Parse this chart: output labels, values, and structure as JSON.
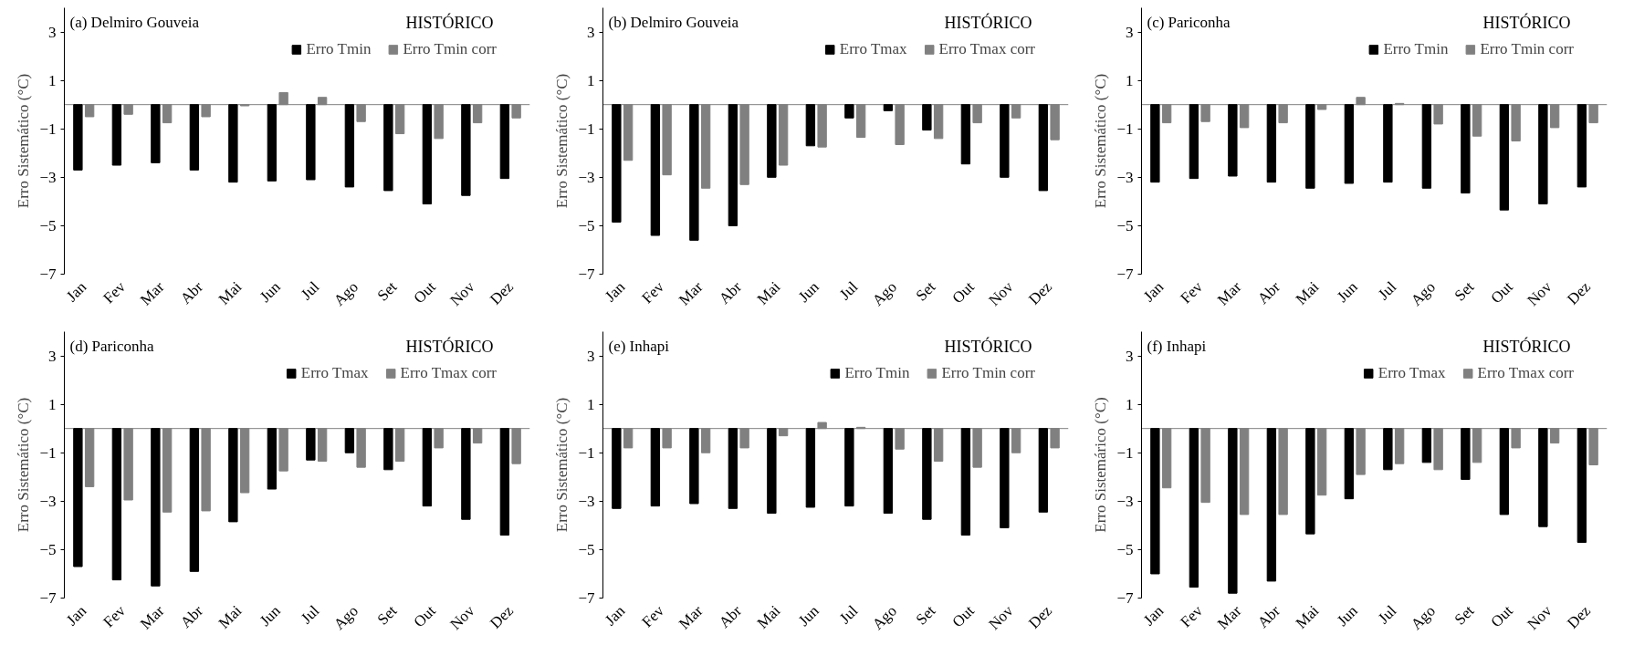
{
  "chart_data": [
    {
      "type": "bar",
      "title": "(a) Delmiro  Gouveia",
      "subtitle": "HISTÓRICO",
      "ylabel": "Erro Sistemático (°C)",
      "categories": [
        "Jan",
        "Fev",
        "Mar",
        "Abr",
        "Mai",
        "Jun",
        "Jul",
        "Ago",
        "Set",
        "Out",
        "Nov",
        "Dez"
      ],
      "ylim": [
        -7,
        4
      ],
      "yticks": [
        -7,
        -5,
        -3,
        -1,
        1,
        3
      ],
      "grid": false,
      "legend": "top right",
      "ref_lines": [
        {
          "axis": "y",
          "value": 0,
          "color": "#808080"
        }
      ],
      "series": [
        {
          "name": "Erro Tmin",
          "color": "#000000",
          "values": [
            -2.7,
            -2.5,
            -2.4,
            -2.7,
            -3.2,
            -3.15,
            -3.1,
            -3.4,
            -3.55,
            -4.1,
            -3.75,
            -3.05
          ]
        },
        {
          "name": "Erro Tmin corr",
          "color": "#808080",
          "values": [
            -0.5,
            -0.4,
            -0.75,
            -0.5,
            -0.05,
            0.5,
            0.3,
            -0.7,
            -1.2,
            -1.4,
            -0.75,
            -0.55
          ]
        }
      ]
    },
    {
      "type": "bar",
      "title": "(b) Delmiro  Gouveia",
      "subtitle": "HISTÓRICO",
      "ylabel": "Erro Sistemático (°C)",
      "categories": [
        "Jan",
        "Fev",
        "Mar",
        "Abr",
        "Mai",
        "Jun",
        "Jul",
        "Ago",
        "Set",
        "Out",
        "Nov",
        "Dez"
      ],
      "ylim": [
        -7,
        4
      ],
      "yticks": [
        -7,
        -5,
        -3,
        -1,
        1,
        3
      ],
      "grid": false,
      "legend": "top right",
      "ref_lines": [
        {
          "axis": "y",
          "value": 0,
          "color": "#808080"
        }
      ],
      "series": [
        {
          "name": "Erro Tmax",
          "color": "#000000",
          "values": [
            -4.85,
            -5.4,
            -5.6,
            -5.0,
            -3.0,
            -1.7,
            -0.55,
            -0.25,
            -1.05,
            -2.45,
            -3.0,
            -3.55
          ]
        },
        {
          "name": "Erro Tmax corr",
          "color": "#808080",
          "values": [
            -2.3,
            -2.9,
            -3.45,
            -3.3,
            -2.5,
            -1.75,
            -1.35,
            -1.65,
            -1.4,
            -0.75,
            -0.55,
            -1.45
          ]
        }
      ]
    },
    {
      "type": "bar",
      "title": "(c) Pariconha",
      "subtitle": "HISTÓRICO",
      "ylabel": "Erro Sistemático (°C)",
      "categories": [
        "Jan",
        "Fev",
        "Mar",
        "Abr",
        "Mai",
        "Jun",
        "Jul",
        "Ago",
        "Set",
        "Out",
        "Nov",
        "Dez"
      ],
      "ylim": [
        -7,
        4
      ],
      "yticks": [
        -7,
        -5,
        -3,
        -1,
        1,
        3
      ],
      "grid": false,
      "legend": "top right",
      "ref_lines": [
        {
          "axis": "y",
          "value": 0,
          "color": "#808080"
        }
      ],
      "series": [
        {
          "name": "Erro Tmin",
          "color": "#000000",
          "values": [
            -3.2,
            -3.05,
            -2.95,
            -3.2,
            -3.45,
            -3.25,
            -3.2,
            -3.45,
            -3.65,
            -4.35,
            -4.1,
            -3.4
          ]
        },
        {
          "name": "Erro Tmin corr",
          "color": "#808080",
          "values": [
            -0.75,
            -0.7,
            -0.95,
            -0.75,
            -0.2,
            0.3,
            0.05,
            -0.8,
            -1.3,
            -1.5,
            -0.95,
            -0.75
          ]
        }
      ]
    },
    {
      "type": "bar",
      "title": "(d) Pariconha",
      "subtitle": "HISTÓRICO",
      "ylabel": "Erro Sistemático (°C)",
      "categories": [
        "Jan",
        "Fev",
        "Mar",
        "Abr",
        "Mai",
        "Jun",
        "Jul",
        "Ago",
        "Set",
        "Out",
        "Nov",
        "Dez"
      ],
      "ylim": [
        -7,
        4
      ],
      "yticks": [
        -7,
        -5,
        -3,
        -1,
        1,
        3
      ],
      "grid": false,
      "legend": "top right",
      "ref_lines": [
        {
          "axis": "y",
          "value": 0,
          "color": "#808080"
        }
      ],
      "series": [
        {
          "name": "Erro Tmax",
          "color": "#000000",
          "values": [
            -5.7,
            -6.25,
            -6.5,
            -5.9,
            -3.85,
            -2.5,
            -1.3,
            -1.0,
            -1.7,
            -3.2,
            -3.75,
            -4.4
          ]
        },
        {
          "name": "Erro Tmax corr",
          "color": "#808080",
          "values": [
            -2.4,
            -2.95,
            -3.45,
            -3.4,
            -2.65,
            -1.75,
            -1.35,
            -1.6,
            -1.35,
            -0.8,
            -0.6,
            -1.45
          ]
        }
      ]
    },
    {
      "type": "bar",
      "title": "(e) Inhapi",
      "subtitle": "HISTÓRICO",
      "ylabel": "Erro Sistemático (°C)",
      "categories": [
        "Jan",
        "Fev",
        "Mar",
        "Abr",
        "Mai",
        "Jun",
        "Jul",
        "Ago",
        "Set",
        "Out",
        "Nov",
        "Dez"
      ],
      "ylim": [
        -7,
        4
      ],
      "yticks": [
        -7,
        -5,
        -3,
        -1,
        1,
        3
      ],
      "grid": false,
      "legend": "top right",
      "ref_lines": [
        {
          "axis": "y",
          "value": 0,
          "color": "#808080"
        }
      ],
      "series": [
        {
          "name": "Erro Tmin",
          "color": "#000000",
          "values": [
            -3.3,
            -3.2,
            -3.1,
            -3.3,
            -3.5,
            -3.25,
            -3.2,
            -3.5,
            -3.75,
            -4.4,
            -4.1,
            -3.45
          ]
        },
        {
          "name": "Erro Tmin corr",
          "color": "#808080",
          "values": [
            -0.8,
            -0.8,
            -1.0,
            -0.8,
            -0.3,
            0.25,
            0.05,
            -0.85,
            -1.35,
            -1.6,
            -1.0,
            -0.8
          ]
        }
      ]
    },
    {
      "type": "bar",
      "title": "(f) Inhapi",
      "subtitle": "HISTÓRICO",
      "ylabel": "Erro Sistemárico (°C)",
      "categories": [
        "Jan",
        "Fev",
        "Mar",
        "Abr",
        "Mai",
        "Jun",
        "Jul",
        "Ago",
        "Set",
        "Out",
        "Nov",
        "Dez"
      ],
      "ylim": [
        -7,
        4
      ],
      "yticks": [
        -7,
        -5,
        -3,
        -1,
        1,
        3
      ],
      "grid": false,
      "legend": "top right",
      "ref_lines": [
        {
          "axis": "y",
          "value": 0,
          "color": "#808080"
        }
      ],
      "series": [
        {
          "name": "Erro Tmax",
          "color": "#000000",
          "values": [
            -6.0,
            -6.55,
            -6.8,
            -6.3,
            -4.35,
            -2.9,
            -1.7,
            -1.4,
            -2.1,
            -3.55,
            -4.05,
            -4.7
          ]
        },
        {
          "name": "Erro Tmax corr",
          "color": "#808080",
          "values": [
            -2.45,
            -3.05,
            -3.55,
            -3.55,
            -2.75,
            -1.9,
            -1.45,
            -1.7,
            -1.4,
            -0.8,
            -0.6,
            -1.5
          ]
        }
      ]
    }
  ]
}
